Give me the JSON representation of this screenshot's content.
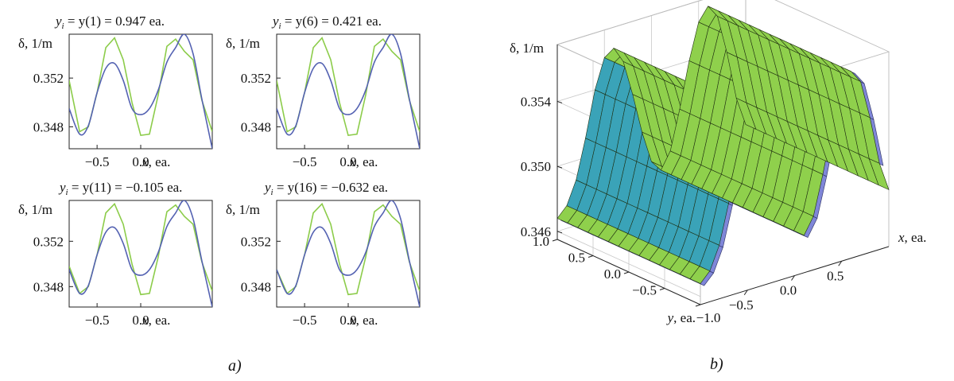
{
  "figure": {
    "label_a": "a)",
    "label_b": "b)"
  },
  "colors": {
    "green": "#8ccc4a",
    "blue": "#5462b2",
    "teal": "#3aa3b8",
    "surface_green": "#8fd04c",
    "surface_blue": "#7f86d8",
    "grid": "#c8c8c8"
  },
  "chart_data": [
    {
      "type": "line",
      "panel": "a1",
      "title": {
        "prefix": "y",
        "sub": "i",
        "rest": " = y(1) = 0.947 ea."
      },
      "ylabel": "δ, 1/m",
      "xlabel": "x, ea.",
      "xlim": [
        -0.82,
        0.82
      ],
      "ylim": [
        0.3462,
        0.3556
      ],
      "xticks": [
        {
          "value": -0.5,
          "label": "−0.5"
        },
        {
          "value": 0.0,
          "label": "0.0"
        }
      ],
      "yticks": [
        {
          "value": 0.348,
          "label": "0.348"
        },
        {
          "value": 0.352,
          "label": "0.352"
        }
      ],
      "x": [
        -0.82,
        -0.7,
        -0.6,
        -0.5,
        -0.4,
        -0.3,
        -0.2,
        -0.1,
        0.0,
        0.1,
        0.2,
        0.3,
        0.4,
        0.5,
        0.6,
        0.7,
        0.82
      ],
      "series": [
        {
          "name": "green",
          "color": "#8ccc4a",
          "values": [
            0.3518,
            0.3476,
            0.348,
            0.3508,
            0.3545,
            0.3553,
            0.3535,
            0.35,
            0.3473,
            0.3474,
            0.3506,
            0.3546,
            0.3552,
            0.3542,
            0.3535,
            0.3502,
            0.3476
          ]
        },
        {
          "name": "blue",
          "color": "#5462b2",
          "values": [
            0.3495,
            0.3474,
            0.3481,
            0.3508,
            0.3528,
            0.3532,
            0.3518,
            0.3495,
            0.349,
            0.3495,
            0.351,
            0.3533,
            0.3545,
            0.3556,
            0.354,
            0.3503,
            0.3462
          ]
        }
      ]
    },
    {
      "type": "line",
      "panel": "a2",
      "title": {
        "prefix": "y",
        "sub": "i",
        "rest": " = y(6) = 0.421 ea."
      },
      "ylabel": "δ, 1/m",
      "xlabel": "x, ea.",
      "xlim": [
        -0.82,
        0.82
      ],
      "ylim": [
        0.3462,
        0.3556
      ],
      "xticks": [
        {
          "value": -0.5,
          "label": "−0.5"
        },
        {
          "value": 0.0,
          "label": "0.0"
        }
      ],
      "yticks": [
        {
          "value": 0.348,
          "label": "0.348"
        },
        {
          "value": 0.352,
          "label": "0.352"
        }
      ],
      "x": [
        -0.82,
        -0.7,
        -0.6,
        -0.5,
        -0.4,
        -0.3,
        -0.2,
        -0.1,
        0.0,
        0.1,
        0.2,
        0.3,
        0.4,
        0.5,
        0.6,
        0.7,
        0.82
      ],
      "series": [
        {
          "name": "green",
          "color": "#8ccc4a",
          "values": [
            0.3518,
            0.3476,
            0.348,
            0.3508,
            0.3545,
            0.3553,
            0.3535,
            0.35,
            0.3473,
            0.3474,
            0.3506,
            0.3546,
            0.3552,
            0.3542,
            0.3535,
            0.3502,
            0.3476
          ]
        },
        {
          "name": "blue",
          "color": "#5462b2",
          "values": [
            0.3495,
            0.3474,
            0.3481,
            0.3508,
            0.3528,
            0.3532,
            0.3518,
            0.3495,
            0.349,
            0.3495,
            0.351,
            0.3533,
            0.3545,
            0.3556,
            0.354,
            0.3503,
            0.3462
          ]
        }
      ]
    },
    {
      "type": "line",
      "panel": "a3",
      "title": {
        "prefix": "y",
        "sub": "i",
        "rest": " = y(11) = −0.105 ea."
      },
      "ylabel": "δ, 1/m",
      "xlabel": "x, ea.",
      "xlim": [
        -0.82,
        0.82
      ],
      "ylim": [
        0.3462,
        0.3556
      ],
      "xticks": [
        {
          "value": -0.5,
          "label": "−0.5"
        },
        {
          "value": 0.0,
          "label": "0.0"
        }
      ],
      "yticks": [
        {
          "value": 0.348,
          "label": "0.348"
        },
        {
          "value": 0.352,
          "label": "0.352"
        }
      ],
      "x": [
        -0.82,
        -0.7,
        -0.6,
        -0.5,
        -0.4,
        -0.3,
        -0.2,
        -0.1,
        0.0,
        0.1,
        0.2,
        0.3,
        0.4,
        0.5,
        0.6,
        0.7,
        0.82
      ],
      "series": [
        {
          "name": "green",
          "color": "#8ccc4a",
          "values": [
            0.3498,
            0.3474,
            0.348,
            0.3508,
            0.3545,
            0.3553,
            0.3535,
            0.35,
            0.3473,
            0.3474,
            0.3506,
            0.3546,
            0.3552,
            0.3542,
            0.3535,
            0.3502,
            0.3476
          ]
        },
        {
          "name": "blue",
          "color": "#5462b2",
          "values": [
            0.3495,
            0.3474,
            0.3481,
            0.3508,
            0.3528,
            0.3532,
            0.3518,
            0.3495,
            0.349,
            0.3495,
            0.351,
            0.3533,
            0.3545,
            0.3556,
            0.354,
            0.3503,
            0.3462
          ]
        }
      ]
    },
    {
      "type": "line",
      "panel": "a4",
      "title": {
        "prefix": "y",
        "sub": "i",
        "rest": " = y(16) = −0.632 ea."
      },
      "ylabel": "δ, 1/m",
      "xlabel": "x, ea.",
      "xlim": [
        -0.82,
        0.82
      ],
      "ylim": [
        0.3462,
        0.3556
      ],
      "xticks": [
        {
          "value": -0.5,
          "label": "−0.5"
        },
        {
          "value": 0.0,
          "label": "0.0"
        }
      ],
      "yticks": [
        {
          "value": 0.348,
          "label": "0.348"
        },
        {
          "value": 0.352,
          "label": "0.352"
        }
      ],
      "x": [
        -0.82,
        -0.7,
        -0.6,
        -0.5,
        -0.4,
        -0.3,
        -0.2,
        -0.1,
        0.0,
        0.1,
        0.2,
        0.3,
        0.4,
        0.5,
        0.6,
        0.7,
        0.82
      ],
      "series": [
        {
          "name": "green",
          "color": "#8ccc4a",
          "values": [
            0.3495,
            0.3474,
            0.348,
            0.3508,
            0.3545,
            0.3553,
            0.3535,
            0.35,
            0.3473,
            0.3474,
            0.3506,
            0.3546,
            0.3552,
            0.3542,
            0.3535,
            0.3502,
            0.3476
          ]
        },
        {
          "name": "blue",
          "color": "#5462b2",
          "values": [
            0.3495,
            0.3474,
            0.3481,
            0.3508,
            0.3528,
            0.3532,
            0.3518,
            0.3495,
            0.349,
            0.3495,
            0.351,
            0.3533,
            0.3545,
            0.3556,
            0.354,
            0.3503,
            0.3462
          ]
        }
      ]
    },
    {
      "type": "surface",
      "panel": "b",
      "zlabel": "δ, 1/m",
      "xlabel": "x, ea.",
      "ylabel": "y, ea.",
      "xlim": [
        -1.0,
        1.0
      ],
      "ylim": [
        -1.0,
        1.0
      ],
      "zlim": [
        0.3455,
        0.3575
      ],
      "zticks": [
        {
          "value": 0.346,
          "label": "0.346"
        },
        {
          "value": 0.35,
          "label": "0.350"
        },
        {
          "value": 0.354,
          "label": "0.354"
        }
      ],
      "xticks": [
        {
          "value": -0.5,
          "label": "−0.5"
        },
        {
          "value": 0.0,
          "label": "0.0"
        },
        {
          "value": 0.5,
          "label": "0.5"
        }
      ],
      "yticks": [
        {
          "value": -1.0,
          "label": "−1.0"
        },
        {
          "value": -0.5,
          "label": "−0.5"
        },
        {
          "value": 0.0,
          "label": "0.0"
        },
        {
          "value": 0.5,
          "label": "0.5"
        },
        {
          "value": 1.0,
          "label": "1.0"
        }
      ],
      "profile_x": [
        -1.0,
        -0.9,
        -0.8,
        -0.7,
        -0.6,
        -0.5,
        -0.4,
        -0.3,
        -0.2,
        -0.1,
        0.0,
        0.1,
        0.2,
        0.3,
        0.4,
        0.5,
        0.6,
        0.7,
        0.8,
        0.9,
        1.0
      ],
      "profile_z": [
        0.3468,
        0.3474,
        0.3488,
        0.3512,
        0.354,
        0.3558,
        0.3562,
        0.3552,
        0.353,
        0.3505,
        0.3485,
        0.3478,
        0.3488,
        0.3512,
        0.354,
        0.3562,
        0.357,
        0.3562,
        0.3538,
        0.3508,
        0.349
      ],
      "surfaces": [
        {
          "name": "green surface",
          "color": "#8fd04c"
        },
        {
          "name": "blue surface",
          "color": "#7f86d8"
        }
      ]
    }
  ]
}
